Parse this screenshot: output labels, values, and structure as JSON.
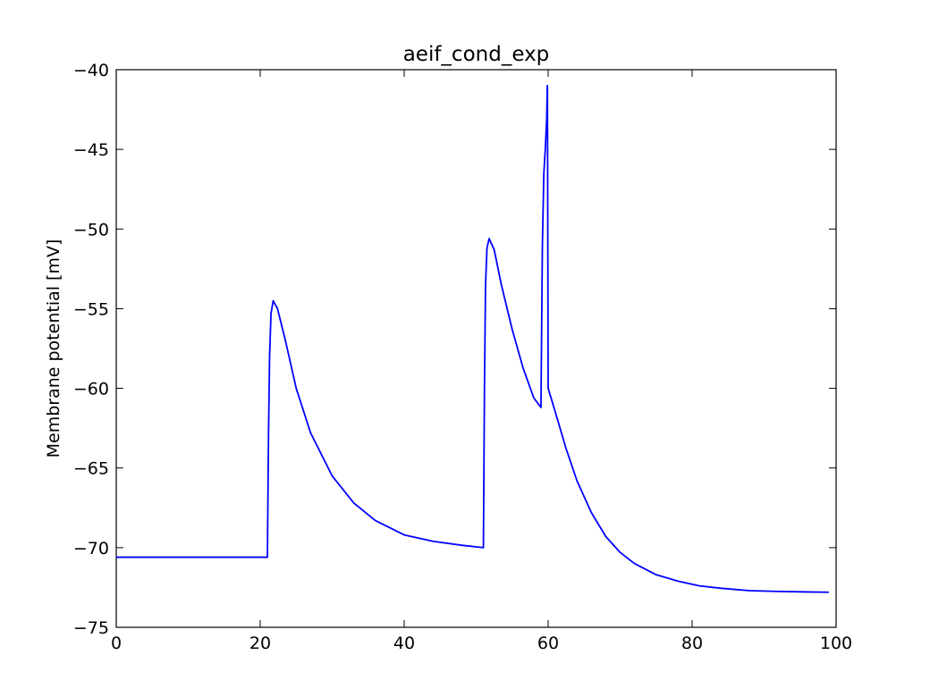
{
  "chart_data": {
    "type": "line",
    "title": "aeif_cond_exp",
    "xlabel": "",
    "ylabel": "Membrane potential [mV]",
    "xlim": [
      0,
      100
    ],
    "ylim": [
      -75,
      -40
    ],
    "xticks": [
      0,
      20,
      40,
      60,
      80,
      100
    ],
    "yticks": [
      -75,
      -70,
      -65,
      -60,
      -55,
      -50,
      -45,
      -40
    ],
    "xtick_labels": [
      "0",
      "20",
      "40",
      "60",
      "80",
      "100"
    ],
    "ytick_labels": [
      "−75",
      "−70",
      "−65",
      "−60",
      "−55",
      "−50",
      "−45",
      "−40"
    ],
    "grid": false,
    "series": [
      {
        "color": "#0000ff",
        "x": [
          0,
          21.0,
          21.05,
          21.15,
          21.3,
          21.5,
          21.8,
          22.4,
          23.5,
          25.0,
          27.0,
          30.0,
          33.0,
          36.0,
          40.0,
          44.0,
          48.0,
          51.0,
          51.05,
          51.15,
          51.3,
          51.5,
          51.8,
          52.5,
          53.5,
          55.0,
          56.5,
          58.0,
          59.0,
          59.08,
          59.2,
          59.4,
          59.6,
          59.8,
          59.88,
          59.9,
          60.0,
          61.0,
          62.5,
          64.0,
          66.0,
          68.0,
          70.0,
          72.0,
          75.0,
          78.0,
          81.0,
          84.0,
          88.0,
          92.0,
          96.0,
          99.0
        ],
        "y": [
          -70.6,
          -70.6,
          -68.0,
          -63.0,
          -58.0,
          -55.3,
          -54.5,
          -55.0,
          -57.0,
          -60.0,
          -62.8,
          -65.5,
          -67.2,
          -68.3,
          -69.2,
          -69.6,
          -69.85,
          -70.0,
          -67.0,
          -60.0,
          -53.5,
          -51.2,
          -50.6,
          -51.3,
          -53.5,
          -56.3,
          -58.7,
          -60.6,
          -61.2,
          -57.0,
          -51.0,
          -46.5,
          -45.0,
          -43.0,
          -41.0,
          -41.0,
          -60.0,
          -61.5,
          -63.8,
          -65.8,
          -67.8,
          -69.3,
          -70.3,
          -71.0,
          -71.7,
          -72.1,
          -72.4,
          -72.55,
          -72.7,
          -72.75,
          -72.78,
          -72.8
        ]
      }
    ]
  }
}
